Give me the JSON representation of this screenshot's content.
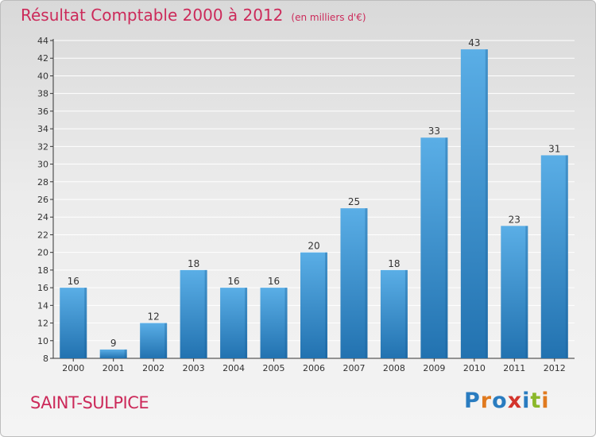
{
  "title": "Résultat Comptable 2000 à 2012",
  "subtitle": "(en milliers d'€)",
  "commune": "SAINT-SULPICE",
  "logo": {
    "text": "Proxiti",
    "colors": [
      "#2a7cc0",
      "#e07a1f",
      "#2a7cc0",
      "#d3342c",
      "#2a7cc0",
      "#8bb82a",
      "#e07a1f"
    ]
  },
  "colors": {
    "title": "#cc2a5a",
    "bar_light": "#5aaee6",
    "bar_dark": "#2272b0",
    "gridline": "#ffffff"
  },
  "chart_data": {
    "type": "bar",
    "title": "Résultat Comptable 2000 à 2012 (en milliers d'€)",
    "xlabel": "",
    "ylabel": "",
    "categories": [
      "2000",
      "2001",
      "2002",
      "2003",
      "2004",
      "2005",
      "2006",
      "2007",
      "2008",
      "2009",
      "2010",
      "2011",
      "2012"
    ],
    "values": [
      16,
      9,
      12,
      18,
      16,
      16,
      20,
      25,
      18,
      33,
      43,
      23,
      31
    ],
    "ylim": [
      8,
      44
    ],
    "yticks": [
      8,
      10,
      12,
      14,
      16,
      18,
      20,
      22,
      24,
      26,
      28,
      30,
      32,
      34,
      36,
      38,
      40,
      42,
      44
    ],
    "grid": true
  }
}
